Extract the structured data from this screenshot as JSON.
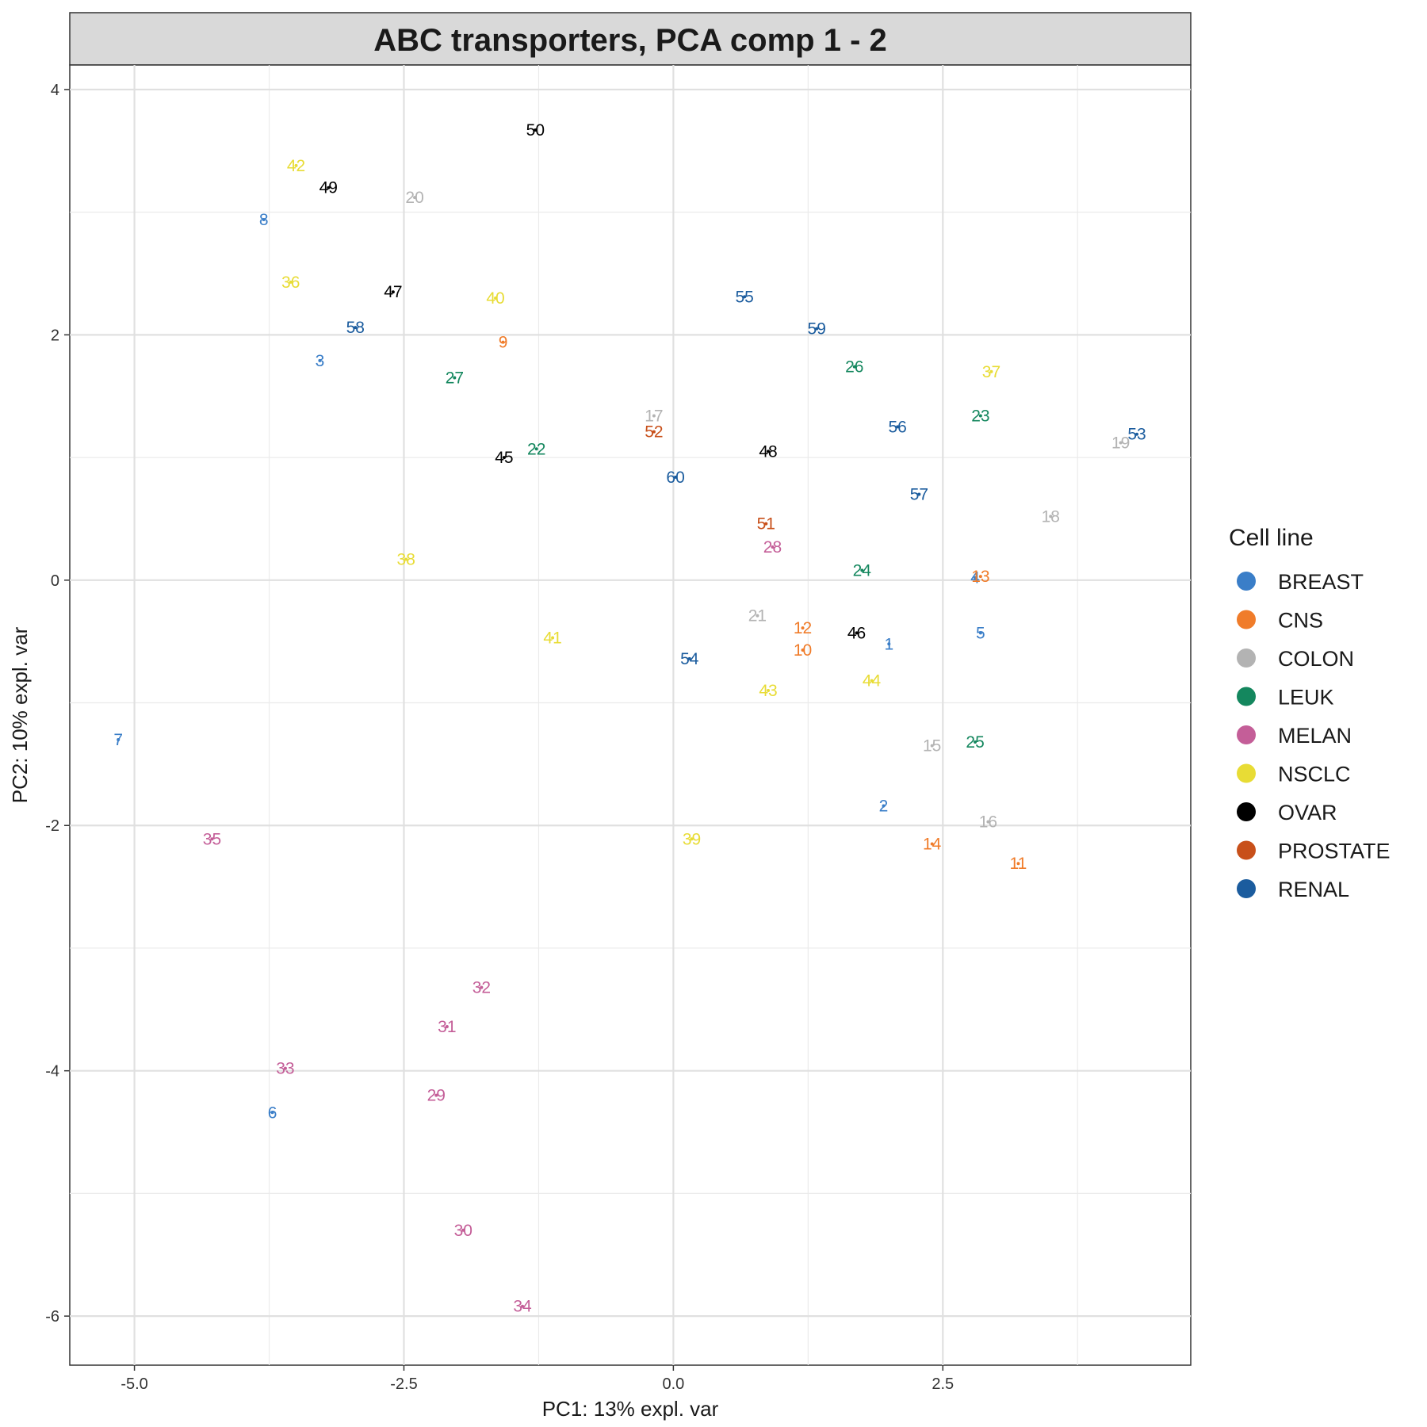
{
  "chart_data": {
    "type": "scatter",
    "title": "ABC transporters, PCA comp 1 - 2",
    "xlabel": "PC1: 13% expl. var",
    "ylabel": "PC2: 10% expl. var",
    "xlim": [
      -5.6,
      4.8
    ],
    "ylim": [
      -6.4,
      4.2
    ],
    "xticks": [
      -5.0,
      -2.5,
      0.0,
      2.5
    ],
    "xtick_labels": [
      "-5.0",
      "-2.5",
      "0.0",
      "2.5"
    ],
    "yticks": [
      -6,
      -4,
      -2,
      0,
      2,
      4
    ],
    "ytick_labels": [
      "-6",
      "-4",
      "-2",
      "0",
      "2",
      "4"
    ],
    "grid": true,
    "legend": {
      "title": "Cell line",
      "placement": "right",
      "entries": [
        "BREAST",
        "CNS",
        "COLON",
        "LEUK",
        "MELAN",
        "NSCLC",
        "OVAR",
        "PROSTATE",
        "RENAL"
      ]
    },
    "colors": {
      "BREAST": "#3a7ec8",
      "CNS": "#f07c2a",
      "COLON": "#b3b3b3",
      "LEUK": "#14875e",
      "MELAN": "#c45e98",
      "NSCLC": "#e8dc35",
      "OVAR": "#000000",
      "PROSTATE": "#c8501a",
      "RENAL": "#1b5c9e"
    },
    "points": [
      {
        "label": "1",
        "group": "BREAST",
        "x": 2.0,
        "y": -0.52
      },
      {
        "label": "2",
        "group": "BREAST",
        "x": 1.95,
        "y": -1.84
      },
      {
        "label": "3",
        "group": "BREAST",
        "x": -3.28,
        "y": 1.79
      },
      {
        "label": "4",
        "group": "BREAST",
        "x": 2.8,
        "y": 0.02
      },
      {
        "label": "5",
        "group": "BREAST",
        "x": 2.85,
        "y": -0.43
      },
      {
        "label": "6",
        "group": "BREAST",
        "x": -3.72,
        "y": -4.34
      },
      {
        "label": "7",
        "group": "BREAST",
        "x": -5.15,
        "y": -1.3
      },
      {
        "label": "8",
        "group": "BREAST",
        "x": -3.8,
        "y": 2.94
      },
      {
        "label": "9",
        "group": "CNS",
        "x": -1.58,
        "y": 1.94
      },
      {
        "label": "10",
        "group": "CNS",
        "x": 1.2,
        "y": -0.57
      },
      {
        "label": "11",
        "group": "CNS",
        "x": 3.2,
        "y": -2.31
      },
      {
        "label": "12",
        "group": "CNS",
        "x": 1.2,
        "y": -0.39
      },
      {
        "label": "13",
        "group": "CNS",
        "x": 2.85,
        "y": 0.03
      },
      {
        "label": "14",
        "group": "CNS",
        "x": 2.4,
        "y": -2.15
      },
      {
        "label": "15",
        "group": "COLON",
        "x": 2.4,
        "y": -1.35
      },
      {
        "label": "16",
        "group": "COLON",
        "x": 2.92,
        "y": -1.97
      },
      {
        "label": "17",
        "group": "COLON",
        "x": -0.18,
        "y": 1.34
      },
      {
        "label": "18",
        "group": "COLON",
        "x": 3.5,
        "y": 0.52
      },
      {
        "label": "19",
        "group": "COLON",
        "x": 4.15,
        "y": 1.12
      },
      {
        "label": "20",
        "group": "COLON",
        "x": -2.4,
        "y": 3.12
      },
      {
        "label": "21",
        "group": "COLON",
        "x": 0.78,
        "y": -0.29
      },
      {
        "label": "22",
        "group": "LEUK",
        "x": -1.27,
        "y": 1.07
      },
      {
        "label": "23",
        "group": "LEUK",
        "x": 2.85,
        "y": 1.34
      },
      {
        "label": "24",
        "group": "LEUK",
        "x": 1.75,
        "y": 0.08
      },
      {
        "label": "25",
        "group": "LEUK",
        "x": 2.8,
        "y": -1.32
      },
      {
        "label": "26",
        "group": "LEUK",
        "x": 1.68,
        "y": 1.74
      },
      {
        "label": "27",
        "group": "LEUK",
        "x": -2.03,
        "y": 1.65
      },
      {
        "label": "28",
        "group": "MELAN",
        "x": 0.92,
        "y": 0.27
      },
      {
        "label": "29",
        "group": "MELAN",
        "x": -2.2,
        "y": -4.2
      },
      {
        "label": "30",
        "group": "MELAN",
        "x": -1.95,
        "y": -5.3
      },
      {
        "label": "31",
        "group": "MELAN",
        "x": -2.1,
        "y": -3.64
      },
      {
        "label": "32",
        "group": "MELAN",
        "x": -1.78,
        "y": -3.32
      },
      {
        "label": "33",
        "group": "MELAN",
        "x": -3.6,
        "y": -3.98
      },
      {
        "label": "34",
        "group": "MELAN",
        "x": -1.4,
        "y": -5.92
      },
      {
        "label": "35",
        "group": "MELAN",
        "x": -4.28,
        "y": -2.11
      },
      {
        "label": "36",
        "group": "NSCLC",
        "x": -3.55,
        "y": 2.43
      },
      {
        "label": "37",
        "group": "NSCLC",
        "x": 2.95,
        "y": 1.7
      },
      {
        "label": "38",
        "group": "NSCLC",
        "x": -2.48,
        "y": 0.17
      },
      {
        "label": "39",
        "group": "NSCLC",
        "x": 0.17,
        "y": -2.11
      },
      {
        "label": "40",
        "group": "NSCLC",
        "x": -1.65,
        "y": 2.3
      },
      {
        "label": "41",
        "group": "NSCLC",
        "x": -1.12,
        "y": -0.47
      },
      {
        "label": "42",
        "group": "NSCLC",
        "x": -3.5,
        "y": 3.38
      },
      {
        "label": "43",
        "group": "NSCLC",
        "x": 0.88,
        "y": -0.9
      },
      {
        "label": "44",
        "group": "NSCLC",
        "x": 1.84,
        "y": -0.82
      },
      {
        "label": "45",
        "group": "OVAR",
        "x": -1.57,
        "y": 1.0
      },
      {
        "label": "46",
        "group": "OVAR",
        "x": 1.7,
        "y": -0.43
      },
      {
        "label": "47",
        "group": "OVAR",
        "x": -2.6,
        "y": 2.35
      },
      {
        "label": "48",
        "group": "OVAR",
        "x": 0.88,
        "y": 1.05
      },
      {
        "label": "49",
        "group": "OVAR",
        "x": -3.2,
        "y": 3.2
      },
      {
        "label": "50",
        "group": "OVAR",
        "x": -1.28,
        "y": 3.67
      },
      {
        "label": "51",
        "group": "PROSTATE",
        "x": 0.86,
        "y": 0.46
      },
      {
        "label": "52",
        "group": "PROSTATE",
        "x": -0.18,
        "y": 1.21
      },
      {
        "label": "53",
        "group": "RENAL",
        "x": 4.3,
        "y": 1.19
      },
      {
        "label": "54",
        "group": "RENAL",
        "x": 0.15,
        "y": -0.64
      },
      {
        "label": "55",
        "group": "RENAL",
        "x": 0.66,
        "y": 2.31
      },
      {
        "label": "56",
        "group": "RENAL",
        "x": 2.08,
        "y": 1.25
      },
      {
        "label": "57",
        "group": "RENAL",
        "x": 2.28,
        "y": 0.7
      },
      {
        "label": "58",
        "group": "RENAL",
        "x": -2.95,
        "y": 2.06
      },
      {
        "label": "59",
        "group": "RENAL",
        "x": 1.33,
        "y": 2.05
      },
      {
        "label": "60",
        "group": "RENAL",
        "x": 0.02,
        "y": 0.84
      }
    ]
  }
}
